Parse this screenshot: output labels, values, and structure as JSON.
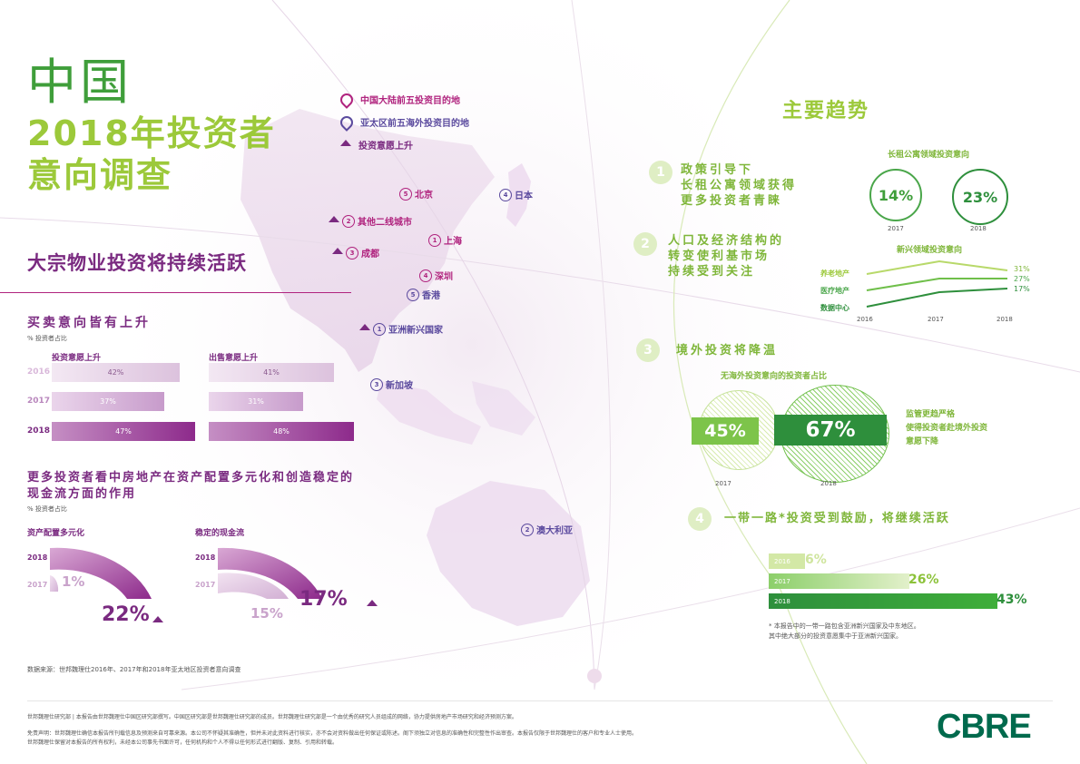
{
  "header": {
    "title_line1": "中国",
    "title_line2": "2018年投资者",
    "title_line3": "意向调查"
  },
  "legend": {
    "item1": "中国大陆前五投资目的地",
    "item2": "亚太区前五海外投资目的地",
    "item3": "投资意愿上升"
  },
  "map": {
    "beijing": {
      "rank": "5",
      "name": "北京"
    },
    "japan": {
      "rank": "4",
      "name": "日本"
    },
    "tier2": {
      "rank": "2",
      "name": "其他二线城市"
    },
    "shanghai": {
      "rank": "1",
      "name": "上海"
    },
    "chengdu": {
      "rank": "3",
      "name": "成都"
    },
    "shenzhen": {
      "rank": "4",
      "name": "深圳"
    },
    "hongkong": {
      "rank": "5",
      "name": "香港"
    },
    "asean": {
      "rank": "1",
      "name": "亚洲新兴国家"
    },
    "singapore": {
      "rank": "3",
      "name": "新加坡"
    },
    "australia": {
      "rank": "2",
      "name": "澳大利亚"
    }
  },
  "left": {
    "section_title": "大宗物业投资将持续活跃",
    "buysell": {
      "title": "买卖意向皆有上升",
      "unit": "% 投资者占比",
      "col1_title": "投资意愿上升",
      "col2_title": "出售意愿上升",
      "rows": [
        {
          "year": "2016",
          "buy": "42%",
          "sell": "41%",
          "buy_value": 42,
          "sell_value": 41
        },
        {
          "year": "2017",
          "buy": "37%",
          "sell": "31%",
          "buy_value": 37,
          "sell_value": 31
        },
        {
          "year": "2018",
          "buy": "47%",
          "sell": "48%",
          "buy_value": 47,
          "sell_value": 48
        }
      ]
    },
    "diversify": {
      "title_line1": "更多投资者看中房地产在资产配置多元化和创造稳定的",
      "title_line2": "现金流方面的作用",
      "unit": "% 投资者占比",
      "chart1_title": "资产配置多元化",
      "chart2_title": "稳定的现金流",
      "year_2018": "2018",
      "year_2017": "2017",
      "c1_2017": "1%",
      "c1_2018": "22%",
      "c2_2017": "15%",
      "c2_2018": "17%"
    },
    "source": "数据来源：世邦魏理仕2016年、2017年和2018年亚太地区投资者意向调查"
  },
  "right": {
    "title": "主要趋势",
    "t1": {
      "num": "1",
      "line1": "政策引导下",
      "line2": "长租公寓领域获得",
      "line3": "更多投资者青睐"
    },
    "rental": {
      "title": "长租公寓领域投资意向",
      "v2017": "14%",
      "v2018": "23%",
      "y2017": "2017",
      "y2018": "2018"
    },
    "t2": {
      "num": "2",
      "line1": "人口及经济结构的",
      "line2": "转变使利基市场",
      "line3": "持续受到关注"
    },
    "niche": {
      "title": "新兴领域投资意向",
      "s1": "养老地产",
      "s2": "医疗地产",
      "s3": "数据中心",
      "v1": "31%",
      "v2": "27%",
      "v3": "17%",
      "x1": "2016",
      "x2": "2017",
      "x3": "2018"
    },
    "t3": {
      "num": "3",
      "line1": "境外投资将降温"
    },
    "overseas": {
      "title": "无海外投资意向的投资者占比",
      "v2017": "45%",
      "v2018": "67%",
      "y2017": "2017",
      "y2018": "2018",
      "note1": "监管更趋严格",
      "note2": "使得投资者赴境外投资",
      "note3": "意愿下降"
    },
    "t4": {
      "num": "4",
      "line1": "一带一路*投资受到鼓励，将继续活跃"
    },
    "bri": {
      "rows": [
        {
          "year": "2016",
          "label": "6%",
          "value": 6
        },
        {
          "year": "2017",
          "label": "26%",
          "value": 26
        },
        {
          "year": "2018",
          "label": "43%",
          "value": 43
        }
      ],
      "note1": "* 本报告中的一带一路包含亚洲新兴国家及中东地区。",
      "note2": "其中绝大部分的投资意愿集中于亚洲新兴国家。"
    }
  },
  "footer": {
    "line1": "世邦魏理仕研究部 | 本报告由世邦魏理仕中国区研究部撰写。中国区研究部是世邦魏理仕研究部的成员。世邦魏理仕研究部是一个由优秀的研究人员组成的网络，协力提供房地产市场研究和经济预测方案。",
    "line2": "免责声明：世邦魏理仕确信本报告所刊载信息及预测来自可靠来源。本公司不怀疑其准确性，但并未对此资料进行核实，亦不会对资料做出任何保证或陈述。阁下须独立对信息的准确性和完整性作出审查。本报告仅限于世邦魏理仕的客户和专业人士使用。",
    "line3": "世邦魏理仕保留对本报告的所有权利，未经本公司事先书面许可，任何机构和个人不得以任何形式进行翻版、复制、引用和转载。",
    "logo": "CBRE"
  },
  "colors": {
    "green": "#3f9e3a",
    "lime": "#9cc93a",
    "purple": "#7a2a80",
    "magenta": "#b0237e"
  }
}
